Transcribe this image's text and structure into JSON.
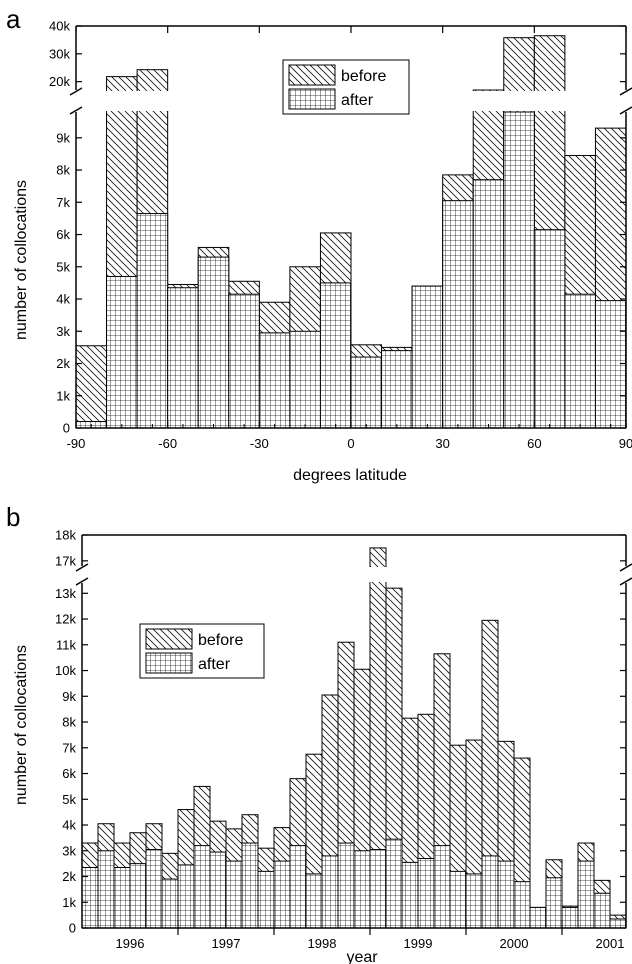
{
  "chart_data": [
    {
      "type": "bar",
      "panel_label": "a",
      "xlabel": "degrees latitude",
      "ylabel": "number of collocations",
      "xlim": [
        -90,
        90
      ],
      "x_ticks": [
        "-90",
        "-60",
        "-30",
        "0",
        "30",
        "60",
        "90"
      ],
      "y_ticks_lower": [
        "0",
        "1k",
        "2k",
        "3k",
        "4k",
        "5k",
        "6k",
        "7k",
        "8k",
        "9k"
      ],
      "y_ticks_upper": [
        "20k",
        "30k",
        "40k"
      ],
      "ylim_lower": [
        0,
        9800
      ],
      "ylim_upper": [
        17000,
        40000
      ],
      "bin_edges": [
        -90,
        -80,
        -70,
        -60,
        -50,
        -40,
        -30,
        -20,
        -10,
        0,
        10,
        20,
        30,
        40,
        50,
        60,
        70,
        80,
        90
      ],
      "legend_position": "top-center",
      "grid": false,
      "series": [
        {
          "name": "before",
          "hatch": "diagonal",
          "values": [
            2550,
            21800,
            24300,
            4450,
            5600,
            4550,
            3900,
            5000,
            6050,
            2580,
            2500,
            4400,
            7850,
            17000,
            35800,
            36500,
            8450,
            9300
          ]
        },
        {
          "name": "after",
          "hatch": "grid",
          "values": [
            200,
            4700,
            6650,
            4350,
            5300,
            4150,
            2950,
            3000,
            4500,
            2200,
            2400,
            4400,
            7050,
            7700,
            9800,
            6150,
            4150,
            3950
          ]
        }
      ]
    },
    {
      "type": "bar",
      "panel_label": "b",
      "xlabel": "year",
      "ylabel": "number of collocations",
      "x_ticks": [
        "1996",
        "1997",
        "1998",
        "1999",
        "2000",
        "2001"
      ],
      "y_ticks_lower": [
        "0",
        "1k",
        "2k",
        "3k",
        "4k",
        "5k",
        "6k",
        "7k",
        "8k",
        "9k",
        "10k",
        "11k",
        "12k",
        "13k"
      ],
      "y_ticks_upper": [
        "17k",
        "18k"
      ],
      "ylim_lower": [
        0,
        13400
      ],
      "ylim_upper": [
        16800,
        18000
      ],
      "legend_position": "top-left",
      "grid": false,
      "series": [
        {
          "name": "before",
          "hatch": "diagonal",
          "values": [
            3300,
            4050,
            3300,
            3700,
            4050,
            2900,
            4600,
            5500,
            4150,
            3850,
            4400,
            3100,
            3900,
            5800,
            6750,
            9050,
            11100,
            10050,
            17500,
            13200,
            8150,
            8300,
            10650,
            7100,
            7300,
            11950,
            7250,
            6600,
            800,
            2650,
            850,
            3300,
            1850,
            500
          ]
        },
        {
          "name": "after",
          "hatch": "grid",
          "values": [
            2350,
            3000,
            2350,
            2500,
            3050,
            1900,
            2450,
            3200,
            2950,
            2600,
            3300,
            2200,
            2600,
            3200,
            2100,
            2800,
            3300,
            3000,
            3050,
            3450,
            2550,
            2700,
            3200,
            2200,
            2100,
            2800,
            2600,
            1800,
            800,
            1950,
            800,
            2600,
            1350,
            350
          ]
        }
      ]
    }
  ]
}
